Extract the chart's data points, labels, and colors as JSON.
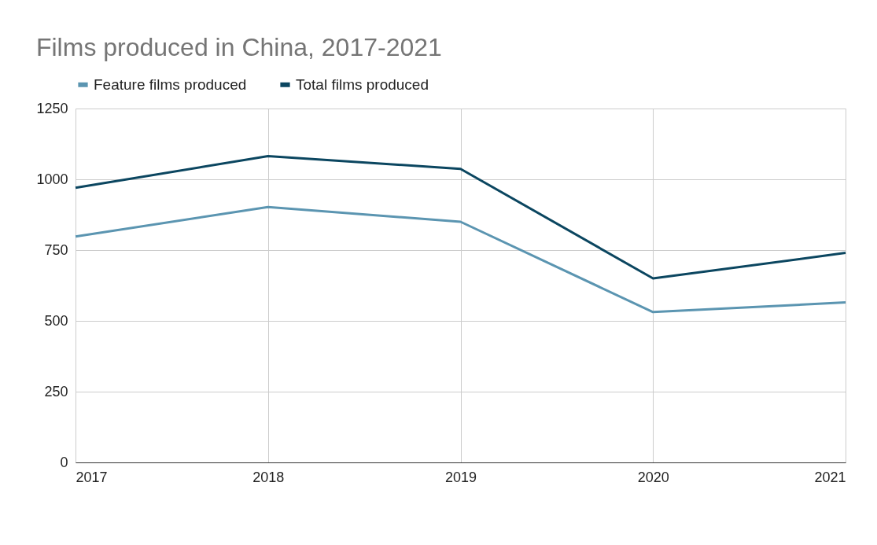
{
  "chart_data": {
    "type": "line",
    "title": "Films produced in China, 2017-2021",
    "x": [
      2017,
      2018,
      2019,
      2020,
      2021
    ],
    "series": [
      {
        "name": "Feature films produced",
        "color": "#5b95b1",
        "values": [
          798,
          902,
          850,
          531,
          565
        ]
      },
      {
        "name": "Total films produced",
        "color": "#0b4660",
        "values": [
          970,
          1082,
          1037,
          650,
          740
        ]
      }
    ],
    "xlim": [
      2017,
      2021
    ],
    "xticks": [
      2017,
      2018,
      2019,
      2020,
      2021
    ],
    "ylim": [
      0,
      1250
    ],
    "yticks": [
      0,
      250,
      500,
      750,
      1000,
      1250
    ],
    "grid": true,
    "legend": "top",
    "marker": "none",
    "line_style": "solid"
  }
}
